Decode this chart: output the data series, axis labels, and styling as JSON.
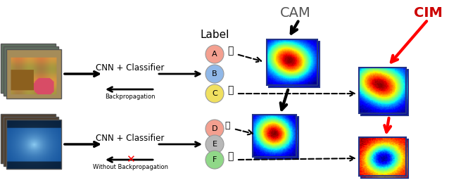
{
  "fig_width": 6.38,
  "fig_height": 2.7,
  "dpi": 100,
  "bg_color": "#ffffff",
  "title_cam": "CAM",
  "title_cim": "CIM",
  "title_cam_color": "#555555",
  "title_cim_color": "#cc0000",
  "title_label": "Label",
  "cnn_text": "CNN + Classifier",
  "backprop_text": "Backpropagation",
  "no_backprop_text": "Without Backpropagation",
  "label_circles": [
    {
      "text": "A",
      "color": "#f4a090"
    },
    {
      "text": "B",
      "color": "#90b8e8"
    },
    {
      "text": "C",
      "color": "#f0e060"
    },
    {
      "text": "D",
      "color": "#f4a090"
    },
    {
      "text": "E",
      "color": "#b8b8b8"
    },
    {
      "text": "F",
      "color": "#90d888"
    }
  ]
}
